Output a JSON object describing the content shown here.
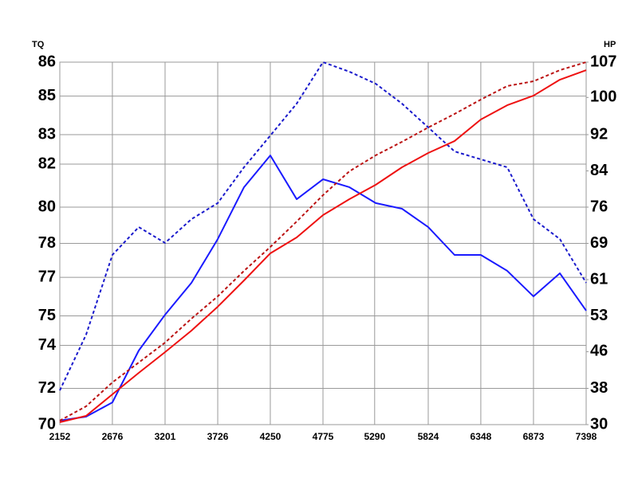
{
  "chart_data": {
    "type": "line",
    "y_label": "TQ",
    "y2_label": "HP",
    "x": [
      2152,
      2414,
      2676,
      2939,
      3201,
      3464,
      3726,
      3988,
      4250,
      4513,
      4775,
      5038,
      5300,
      5562,
      5824,
      6086,
      6348,
      6611,
      6873,
      7136,
      7398
    ],
    "xlim": [
      2152,
      7398
    ],
    "xticks": [
      2152,
      2676,
      3201,
      3726,
      4250,
      4775,
      5290,
      5824,
      6348,
      6873,
      7398
    ],
    "ylim": [
      70,
      86
    ],
    "yticks": [
      70,
      {
        "value": 71.6,
        "label": "72"
      },
      {
        "value": 73.5,
        "label": "74"
      },
      {
        "value": 74.8,
        "label": "75"
      },
      {
        "value": 76.5,
        "label": "77"
      },
      78,
      {
        "value": 79.6,
        "label": "80"
      },
      {
        "value": 81.5,
        "label": "82"
      },
      {
        "value": 82.8,
        "label": "83"
      },
      {
        "value": 84.5,
        "label": "85"
      },
      86
    ],
    "y2lim": [
      30,
      107
    ],
    "y2ticks": [
      30,
      {
        "value": 37.7,
        "label": "38"
      },
      {
        "value": 45.5,
        "label": "46"
      },
      {
        "value": 53.1,
        "label": "53"
      },
      {
        "value": 60.8,
        "label": "61"
      },
      {
        "value": 68.5,
        "label": "69"
      },
      {
        "value": 76.2,
        "label": "76"
      },
      {
        "value": 83.9,
        "label": "84"
      },
      {
        "value": 91.6,
        "label": "92"
      },
      {
        "value": 99.5,
        "label": "100"
      },
      107
    ],
    "grid": true,
    "series": [
      {
        "color": "#1a1aff",
        "dashed": false,
        "values": [
          70.18,
          70.35,
          70.98,
          73.27,
          74.85,
          76.26,
          78.19,
          80.48,
          81.88,
          79.95,
          80.83,
          80.48,
          79.78,
          79.53,
          78.72,
          77.49,
          77.49,
          76.79,
          75.66,
          76.68,
          75.03
        ]
      },
      {
        "color": "#1a1acc",
        "dashed": true,
        "values": [
          71.51,
          73.97,
          77.49,
          78.72,
          78.02,
          79.07,
          79.78,
          81.36,
          82.76,
          84.17,
          86.0,
          85.58,
          85.05,
          84.17,
          83.12,
          82.06,
          81.71,
          81.36,
          79.07,
          78.19,
          76.26
        ]
      },
      {
        "color": "#ee1111",
        "dashed": false,
        "axis": "y2",
        "values": [
          30.51,
          31.86,
          36.43,
          41.0,
          45.4,
          49.97,
          55.05,
          60.63,
          66.39,
          69.77,
          74.51,
          77.89,
          80.94,
          84.66,
          87.71,
          90.24,
          94.81,
          97.85,
          99.88,
          103.27,
          105.3
        ]
      },
      {
        "color": "#bb1111",
        "dashed": true,
        "axis": "y2",
        "values": [
          30.85,
          33.89,
          38.97,
          43.2,
          47.43,
          52.51,
          57.25,
          62.66,
          67.74,
          73.15,
          78.74,
          83.81,
          87.2,
          90.07,
          93.12,
          95.99,
          99.05,
          101.92,
          102.94,
          105.3,
          107.0
        ]
      }
    ]
  }
}
